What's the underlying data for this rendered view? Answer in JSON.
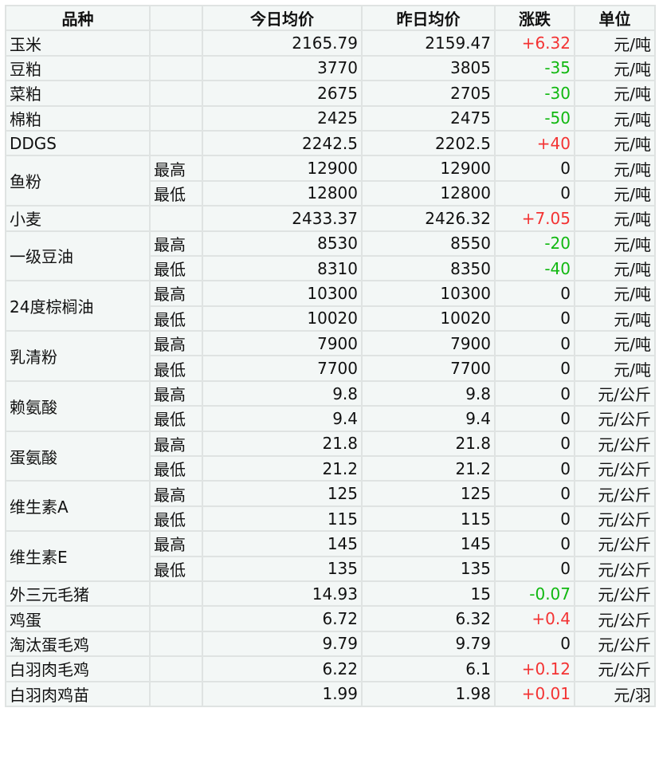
{
  "headers": [
    "品种",
    "",
    "今日均价",
    "昨日均价",
    "涨跌",
    "单位"
  ],
  "colors": {
    "up": "#f33333",
    "down": "#11b811",
    "background": "#f3f7f6",
    "border": "#dfe3e2"
  },
  "items": [
    {
      "name": "玉米",
      "rows": [
        {
          "sub": "",
          "today": "2165.79",
          "yesterday": "2159.47",
          "change": "+6.32",
          "unit": "元/吨"
        }
      ]
    },
    {
      "name": "豆粕",
      "rows": [
        {
          "sub": "",
          "today": "3770",
          "yesterday": "3805",
          "change": "-35",
          "unit": "元/吨"
        }
      ]
    },
    {
      "name": "菜粕",
      "rows": [
        {
          "sub": "",
          "today": "2675",
          "yesterday": "2705",
          "change": "-30",
          "unit": "元/吨"
        }
      ]
    },
    {
      "name": "棉粕",
      "rows": [
        {
          "sub": "",
          "today": "2425",
          "yesterday": "2475",
          "change": "-50",
          "unit": "元/吨"
        }
      ]
    },
    {
      "name": "DDGS",
      "rows": [
        {
          "sub": "",
          "today": "2242.5",
          "yesterday": "2202.5",
          "change": "+40",
          "unit": "元/吨"
        }
      ]
    },
    {
      "name": "鱼粉",
      "rows": [
        {
          "sub": "最高",
          "today": "12900",
          "yesterday": "12900",
          "change": "0",
          "unit": "元/吨"
        },
        {
          "sub": "最低",
          "today": "12800",
          "yesterday": "12800",
          "change": "0",
          "unit": "元/吨"
        }
      ]
    },
    {
      "name": "小麦",
      "rows": [
        {
          "sub": "",
          "today": "2433.37",
          "yesterday": "2426.32",
          "change": "+7.05",
          "unit": "元/吨"
        }
      ]
    },
    {
      "name": "一级豆油",
      "rows": [
        {
          "sub": "最高",
          "today": "8530",
          "yesterday": "8550",
          "change": "-20",
          "unit": "元/吨"
        },
        {
          "sub": "最低",
          "today": "8310",
          "yesterday": "8350",
          "change": "-40",
          "unit": "元/吨"
        }
      ]
    },
    {
      "name": "24度棕榈油",
      "rows": [
        {
          "sub": "最高",
          "today": "10300",
          "yesterday": "10300",
          "change": "0",
          "unit": "元/吨"
        },
        {
          "sub": "最低",
          "today": "10020",
          "yesterday": "10020",
          "change": "0",
          "unit": "元/吨"
        }
      ]
    },
    {
      "name": "乳清粉",
      "rows": [
        {
          "sub": "最高",
          "today": "7900",
          "yesterday": "7900",
          "change": "0",
          "unit": "元/吨"
        },
        {
          "sub": "最低",
          "today": "7700",
          "yesterday": "7700",
          "change": "0",
          "unit": "元/吨"
        }
      ]
    },
    {
      "name": "赖氨酸",
      "rows": [
        {
          "sub": "最高",
          "today": "9.8",
          "yesterday": "9.8",
          "change": "0",
          "unit": "元/公斤"
        },
        {
          "sub": "最低",
          "today": "9.4",
          "yesterday": "9.4",
          "change": "0",
          "unit": "元/公斤"
        }
      ]
    },
    {
      "name": "蛋氨酸",
      "rows": [
        {
          "sub": "最高",
          "today": "21.8",
          "yesterday": "21.8",
          "change": "0",
          "unit": "元/公斤"
        },
        {
          "sub": "最低",
          "today": "21.2",
          "yesterday": "21.2",
          "change": "0",
          "unit": "元/公斤"
        }
      ]
    },
    {
      "name": "维生素A",
      "rows": [
        {
          "sub": "最高",
          "today": "125",
          "yesterday": "125",
          "change": "0",
          "unit": "元/公斤"
        },
        {
          "sub": "最低",
          "today": "115",
          "yesterday": "115",
          "change": "0",
          "unit": "元/公斤"
        }
      ]
    },
    {
      "name": "维生素E",
      "rows": [
        {
          "sub": "最高",
          "today": "145",
          "yesterday": "145",
          "change": "0",
          "unit": "元/公斤"
        },
        {
          "sub": "最低",
          "today": "135",
          "yesterday": "135",
          "change": "0",
          "unit": "元/公斤"
        }
      ]
    },
    {
      "name": "外三元毛猪",
      "rows": [
        {
          "sub": "",
          "today": "14.93",
          "yesterday": "15",
          "change": "-0.07",
          "unit": "元/公斤"
        }
      ]
    },
    {
      "name": "鸡蛋",
      "rows": [
        {
          "sub": "",
          "today": "6.72",
          "yesterday": "6.32",
          "change": "+0.4",
          "unit": "元/公斤"
        }
      ]
    },
    {
      "name": "淘汰蛋毛鸡",
      "rows": [
        {
          "sub": "",
          "today": "9.79",
          "yesterday": "9.79",
          "change": "0",
          "unit": "元/公斤"
        }
      ]
    },
    {
      "name": "白羽肉毛鸡",
      "rows": [
        {
          "sub": "",
          "today": "6.22",
          "yesterday": "6.1",
          "change": "+0.12",
          "unit": "元/公斤"
        }
      ]
    },
    {
      "name": "白羽肉鸡苗",
      "rows": [
        {
          "sub": "",
          "today": "1.99",
          "yesterday": "1.98",
          "change": "+0.01",
          "unit": "元/羽"
        }
      ]
    }
  ]
}
